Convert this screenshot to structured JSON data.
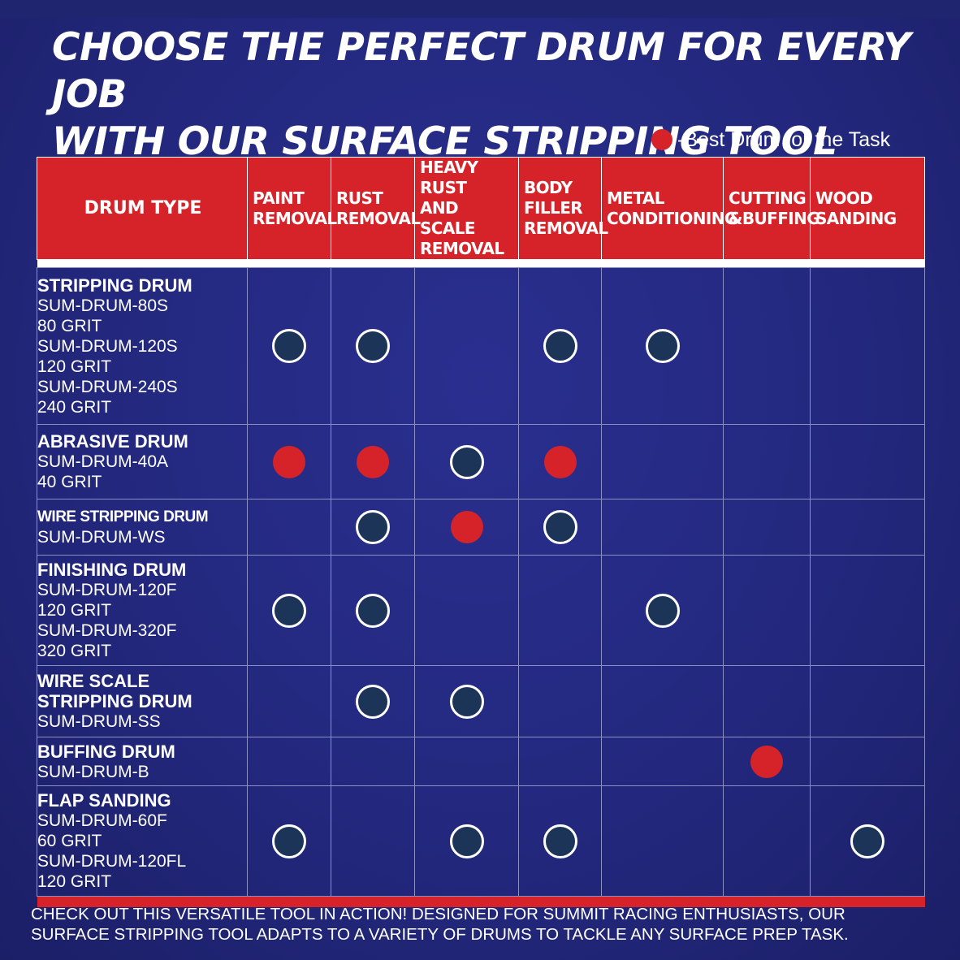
{
  "title": [
    "CHOOSE THE PERFECT DRUM FOR EVERY JOB",
    "WITH OUR SURFACE STRIPPING TOOL"
  ],
  "legend": {
    "label": "-Best Drum for the Task",
    "color": "#d6232a"
  },
  "columns": [
    {
      "lines": [
        "DRUM TYPE"
      ]
    },
    {
      "lines": [
        "PAINT",
        "REMOVAL"
      ]
    },
    {
      "lines": [
        "RUST",
        "REMOVAL"
      ]
    },
    {
      "lines": [
        "HEAVY RUST",
        "AND SCALE",
        "REMOVAL"
      ]
    },
    {
      "lines": [
        "BODY",
        "FILLER",
        "REMOVAL"
      ]
    },
    {
      "lines": [
        "METAL",
        "CONDITIONING"
      ]
    },
    {
      "lines": [
        "CUTTING",
        "&BUFFING"
      ]
    },
    {
      "lines": [
        "WOOD",
        "SANDING"
      ]
    }
  ],
  "marks_legend": {
    "none": "empty",
    "good": "white-outlined circle",
    "best": "red filled circle"
  },
  "rows": [
    {
      "name": [
        "STRIPPING DRUM"
      ],
      "details": [
        "SUM-DRUM-80S",
        "80 GRIT",
        "SUM-DRUM-120S",
        "120 GRIT",
        "SUM-DRUM-240S",
        "240 GRIT"
      ],
      "marks": [
        "good",
        "good",
        "none",
        "good",
        "good",
        "none",
        "none"
      ]
    },
    {
      "name": [
        "ABRASIVE DRUM"
      ],
      "details": [
        "SUM-DRUM-40A",
        "40 GRIT"
      ],
      "marks": [
        "best",
        "best",
        "good",
        "best",
        "none",
        "none",
        "none"
      ]
    },
    {
      "name": [
        "WIRE STRIPPING DRUM"
      ],
      "condensed": true,
      "details": [
        "SUM-DRUM-WS"
      ],
      "marks": [
        "none",
        "good",
        "best",
        "good",
        "none",
        "none",
        "none"
      ]
    },
    {
      "name": [
        "FINISHING DRUM"
      ],
      "details": [
        "SUM-DRUM-120F",
        "120 GRIT",
        "SUM-DRUM-320F",
        "320 GRIT"
      ],
      "marks": [
        "good",
        "good",
        "none",
        "none",
        "good",
        "none",
        "none"
      ]
    },
    {
      "name": [
        "WIRE SCALE",
        "STRIPPING DRUM"
      ],
      "details": [
        "SUM-DRUM-SS"
      ],
      "marks": [
        "none",
        "good",
        "good",
        "none",
        "none",
        "none",
        "none"
      ]
    },
    {
      "name": [
        "BUFFING DRUM"
      ],
      "details": [
        "SUM-DRUM-B"
      ],
      "marks": [
        "none",
        "none",
        "none",
        "none",
        "none",
        "best",
        "none"
      ]
    },
    {
      "name": [
        "FLAP SANDING"
      ],
      "details": [
        "SUM-DRUM-60F",
        "60 GRIT",
        "SUM-DRUM-120FL",
        "120 GRIT"
      ],
      "marks": [
        "good",
        "none",
        "good",
        "good",
        "none",
        "none",
        "good"
      ]
    }
  ],
  "footer": [
    "CHECK OUT THIS VERSATILE TOOL IN ACTION! DESIGNED FOR SUMMIT RACING ENTHUSIASTS, OUR",
    "SURFACE STRIPPING TOOL ADAPTS TO A VARIETY OF DRUMS TO TACKLE ANY SURFACE PREP TASK."
  ]
}
